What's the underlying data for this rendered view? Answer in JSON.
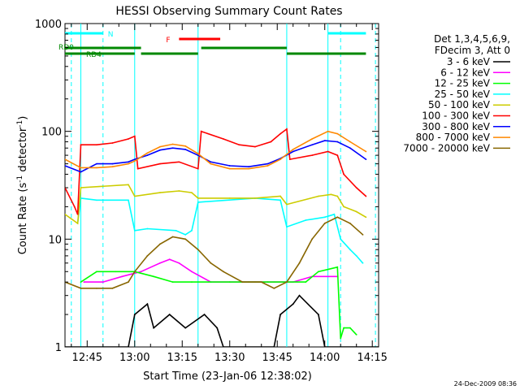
{
  "chart_data": {
    "type": "line",
    "title": "HESSI Observing Summary Count Rates",
    "xlabel": "Start Time (23-Jan-06 12:38:02)",
    "ylabel_parts": [
      "Count Rate (s",
      "-1",
      " detector",
      "-1",
      ")"
    ],
    "yscale": "log",
    "ylim": [
      1,
      1000
    ],
    "xlim_minutes_after_start": [
      0,
      99
    ],
    "x_tick_labels": [
      "12:45",
      "13:00",
      "13:15",
      "13:30",
      "13:45",
      "14:00",
      "14:15"
    ],
    "x_tick_minutes": [
      7,
      22,
      37,
      52,
      67,
      82,
      97
    ],
    "y_tick_labels": [
      "1",
      "10",
      "100",
      "1000"
    ],
    "y_tick_values": [
      1,
      10,
      100,
      1000
    ],
    "legend_header": [
      "Det 1,3,4,5,6,9,",
      "FDecim 3, Att 0"
    ],
    "legend_placement": "right",
    "date_stamp": "24-Dec-2009 08:36",
    "series": [
      {
        "name": "3 - 6 keV",
        "color": "#000000",
        "points": [
          [
            0,
            1
          ],
          [
            20,
            1
          ],
          [
            22,
            2
          ],
          [
            26,
            2.5
          ],
          [
            28,
            1.5
          ],
          [
            33,
            2
          ],
          [
            38,
            1.5
          ],
          [
            44,
            2
          ],
          [
            48,
            1.5
          ],
          [
            50,
            1
          ],
          [
            66,
            1
          ],
          [
            68,
            2
          ],
          [
            72,
            2.5
          ],
          [
            74,
            3
          ],
          [
            80,
            2
          ],
          [
            82,
            1
          ],
          [
            99,
            1
          ]
        ]
      },
      {
        "name": "6 - 12 keV",
        "color": "#ff00ff",
        "points": [
          [
            6,
            4
          ],
          [
            12,
            4
          ],
          [
            18,
            4.5
          ],
          [
            24,
            5
          ],
          [
            30,
            6
          ],
          [
            33,
            6.5
          ],
          [
            36,
            6
          ],
          [
            40,
            5
          ],
          [
            46,
            4
          ],
          [
            52,
            4
          ],
          [
            60,
            4
          ],
          [
            66,
            4
          ],
          [
            72,
            4
          ],
          [
            78,
            4.5
          ],
          [
            83,
            4.5
          ],
          [
            86,
            4.5
          ]
        ]
      },
      {
        "name": "12 - 25 keV",
        "color": "#00ff00",
        "points": [
          [
            5,
            4
          ],
          [
            10,
            5
          ],
          [
            16,
            5
          ],
          [
            22,
            5
          ],
          [
            28,
            4.5
          ],
          [
            34,
            4
          ],
          [
            40,
            4
          ],
          [
            46,
            4
          ],
          [
            52,
            4
          ],
          [
            58,
            4
          ],
          [
            64,
            4
          ],
          [
            70,
            4
          ],
          [
            76,
            4
          ],
          [
            80,
            5
          ],
          [
            86,
            5.5
          ],
          [
            87,
            1.2
          ],
          [
            88,
            1.5
          ],
          [
            90,
            1.5
          ],
          [
            92,
            1.3
          ]
        ]
      },
      {
        "name": "25 - 50 keV",
        "color": "#00ffff",
        "points": [
          [
            4,
            14
          ],
          [
            5,
            24
          ],
          [
            10,
            23
          ],
          [
            20,
            23
          ],
          [
            22,
            12
          ],
          [
            26,
            12.5
          ],
          [
            35,
            12
          ],
          [
            38,
            11
          ],
          [
            40,
            12
          ],
          [
            42,
            22
          ],
          [
            60,
            24
          ],
          [
            68,
            23
          ],
          [
            70,
            13
          ],
          [
            76,
            15
          ],
          [
            82,
            16
          ],
          [
            85,
            17
          ],
          [
            87,
            10
          ],
          [
            90,
            8
          ],
          [
            92,
            7
          ],
          [
            94,
            6
          ]
        ]
      },
      {
        "name": "50 - 100 keV",
        "color": "#cccc00",
        "points": [
          [
            0,
            17
          ],
          [
            4,
            14
          ],
          [
            5,
            30
          ],
          [
            20,
            32
          ],
          [
            22,
            25
          ],
          [
            30,
            27
          ],
          [
            36,
            28
          ],
          [
            40,
            27
          ],
          [
            42,
            24
          ],
          [
            52,
            24
          ],
          [
            60,
            24
          ],
          [
            68,
            25
          ],
          [
            70,
            21
          ],
          [
            80,
            25
          ],
          [
            84,
            26
          ],
          [
            86,
            25
          ],
          [
            88,
            20
          ],
          [
            92,
            18
          ],
          [
            95,
            16
          ]
        ]
      },
      {
        "name": "100 - 300 keV",
        "color": "#ff0000",
        "points": [
          [
            0,
            30
          ],
          [
            3,
            20
          ],
          [
            4,
            17
          ],
          [
            5,
            75
          ],
          [
            10,
            75
          ],
          [
            15,
            78
          ],
          [
            20,
            85
          ],
          [
            22,
            90
          ],
          [
            23,
            45
          ],
          [
            30,
            50
          ],
          [
            36,
            52
          ],
          [
            42,
            45
          ],
          [
            43,
            100
          ],
          [
            50,
            85
          ],
          [
            55,
            75
          ],
          [
            60,
            72
          ],
          [
            65,
            80
          ],
          [
            68,
            95
          ],
          [
            70,
            105
          ],
          [
            71,
            55
          ],
          [
            78,
            60
          ],
          [
            83,
            65
          ],
          [
            86,
            60
          ],
          [
            88,
            40
          ],
          [
            92,
            30
          ],
          [
            95,
            25
          ]
        ]
      },
      {
        "name": "300 - 800 keV",
        "color": "#0000ff",
        "points": [
          [
            0,
            48
          ],
          [
            5,
            42
          ],
          [
            10,
            50
          ],
          [
            15,
            50
          ],
          [
            20,
            52
          ],
          [
            22,
            55
          ],
          [
            26,
            60
          ],
          [
            30,
            67
          ],
          [
            34,
            70
          ],
          [
            38,
            68
          ],
          [
            42,
            60
          ],
          [
            46,
            52
          ],
          [
            52,
            48
          ],
          [
            58,
            47
          ],
          [
            64,
            50
          ],
          [
            68,
            56
          ],
          [
            72,
            65
          ],
          [
            78,
            75
          ],
          [
            82,
            82
          ],
          [
            86,
            80
          ],
          [
            90,
            70
          ],
          [
            95,
            55
          ]
        ]
      },
      {
        "name": "800 - 7000 keV",
        "color": "#ff8800",
        "points": [
          [
            0,
            55
          ],
          [
            5,
            46
          ],
          [
            10,
            46
          ],
          [
            15,
            47
          ],
          [
            20,
            50
          ],
          [
            22,
            53
          ],
          [
            26,
            63
          ],
          [
            30,
            72
          ],
          [
            34,
            76
          ],
          [
            38,
            73
          ],
          [
            42,
            62
          ],
          [
            46,
            50
          ],
          [
            52,
            45
          ],
          [
            58,
            45
          ],
          [
            64,
            48
          ],
          [
            68,
            55
          ],
          [
            72,
            68
          ],
          [
            78,
            85
          ],
          [
            83,
            100
          ],
          [
            86,
            95
          ],
          [
            90,
            80
          ],
          [
            95,
            65
          ]
        ]
      },
      {
        "name": "7000 - 20000 keV",
        "color": "#886600",
        "points": [
          [
            0,
            4
          ],
          [
            5,
            3.5
          ],
          [
            10,
            3.5
          ],
          [
            15,
            3.5
          ],
          [
            20,
            4
          ],
          [
            22,
            5
          ],
          [
            26,
            7
          ],
          [
            30,
            9
          ],
          [
            34,
            10.5
          ],
          [
            38,
            10
          ],
          [
            42,
            8
          ],
          [
            46,
            6
          ],
          [
            50,
            5
          ],
          [
            56,
            4
          ],
          [
            62,
            4
          ],
          [
            66,
            3.5
          ],
          [
            70,
            4
          ],
          [
            74,
            6
          ],
          [
            78,
            10
          ],
          [
            82,
            14
          ],
          [
            86,
            16
          ],
          [
            90,
            14
          ],
          [
            94,
            11
          ]
        ]
      }
    ],
    "annotations": [
      {
        "label": "N",
        "color": "#00ffff",
        "segments": [
          [
            0,
            12
          ],
          [
            83,
            95
          ]
        ]
      },
      {
        "label": "RD0",
        "color": "#008800",
        "segments": [
          [
            0,
            24
          ],
          [
            43,
            70
          ]
        ]
      },
      {
        "label": "RD4",
        "color": "#008800",
        "segments": [
          [
            0,
            22
          ],
          [
            24,
            42
          ],
          [
            70,
            95
          ]
        ]
      },
      {
        "label": "F",
        "color": "#ff0000",
        "segments": [
          [
            36,
            49
          ]
        ]
      }
    ],
    "vlines": [
      {
        "color": "#00ffff",
        "style": "dashed",
        "x": [
          2,
          12,
          87,
          98
        ]
      },
      {
        "color": "#00ffff",
        "style": "solid",
        "x": [
          5,
          22,
          42,
          70,
          83
        ]
      }
    ]
  }
}
